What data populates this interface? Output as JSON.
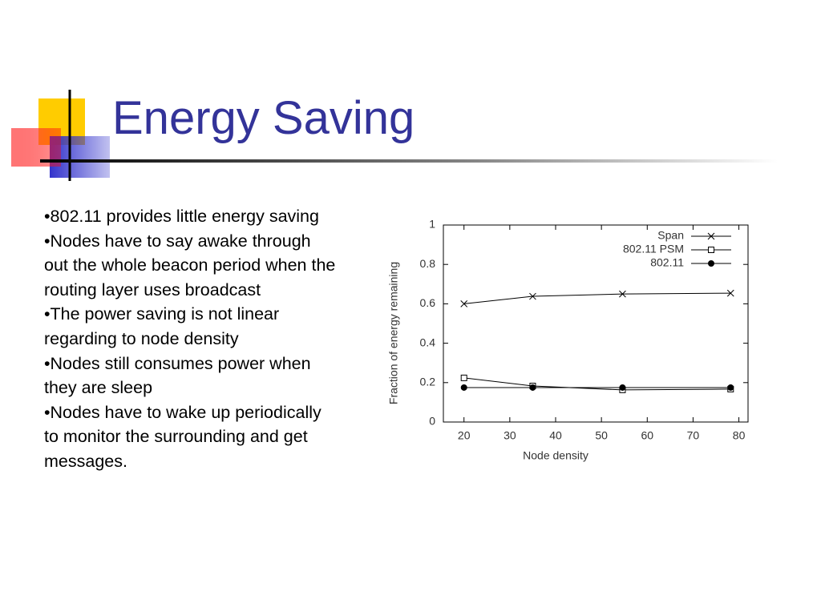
{
  "slide": {
    "title": "Energy Saving",
    "bullets": [
      "•802.11 provides little energy saving",
      "•Nodes have to say awake through out the whole beacon period when the routing layer uses broadcast",
      "•The power saving is not linear regarding to node density",
      "•Nodes still consumes power when they are sleep",
      "•Nodes have to wake up periodically to monitor the surrounding and get messages."
    ]
  },
  "chart_data": {
    "type": "line",
    "x_label": "Node density",
    "y_label": "Fraction of energy remaining",
    "x": [
      20,
      35,
      54.6,
      78.2
    ],
    "series": [
      {
        "name": "Span",
        "color": "#000000",
        "marker": "x",
        "values": [
          0.6,
          0.638,
          0.65,
          0.654
        ]
      },
      {
        "name": "802.11 PSM",
        "color": "#000000",
        "marker": "square",
        "values": [
          0.224,
          0.183,
          0.163,
          0.167
        ]
      },
      {
        "name": "802.11",
        "color": "#000000",
        "marker": "circle",
        "values": [
          0.175,
          0.175,
          0.175,
          0.175
        ]
      }
    ],
    "xlim": [
      15.5,
      82
    ],
    "xticks": [
      20,
      30,
      40,
      50,
      60,
      70,
      80
    ],
    "ylim": [
      0,
      1
    ],
    "yticks": [
      0,
      0.2,
      0.4,
      0.6,
      0.8,
      1
    ],
    "grid": false,
    "legend": "top-right"
  }
}
